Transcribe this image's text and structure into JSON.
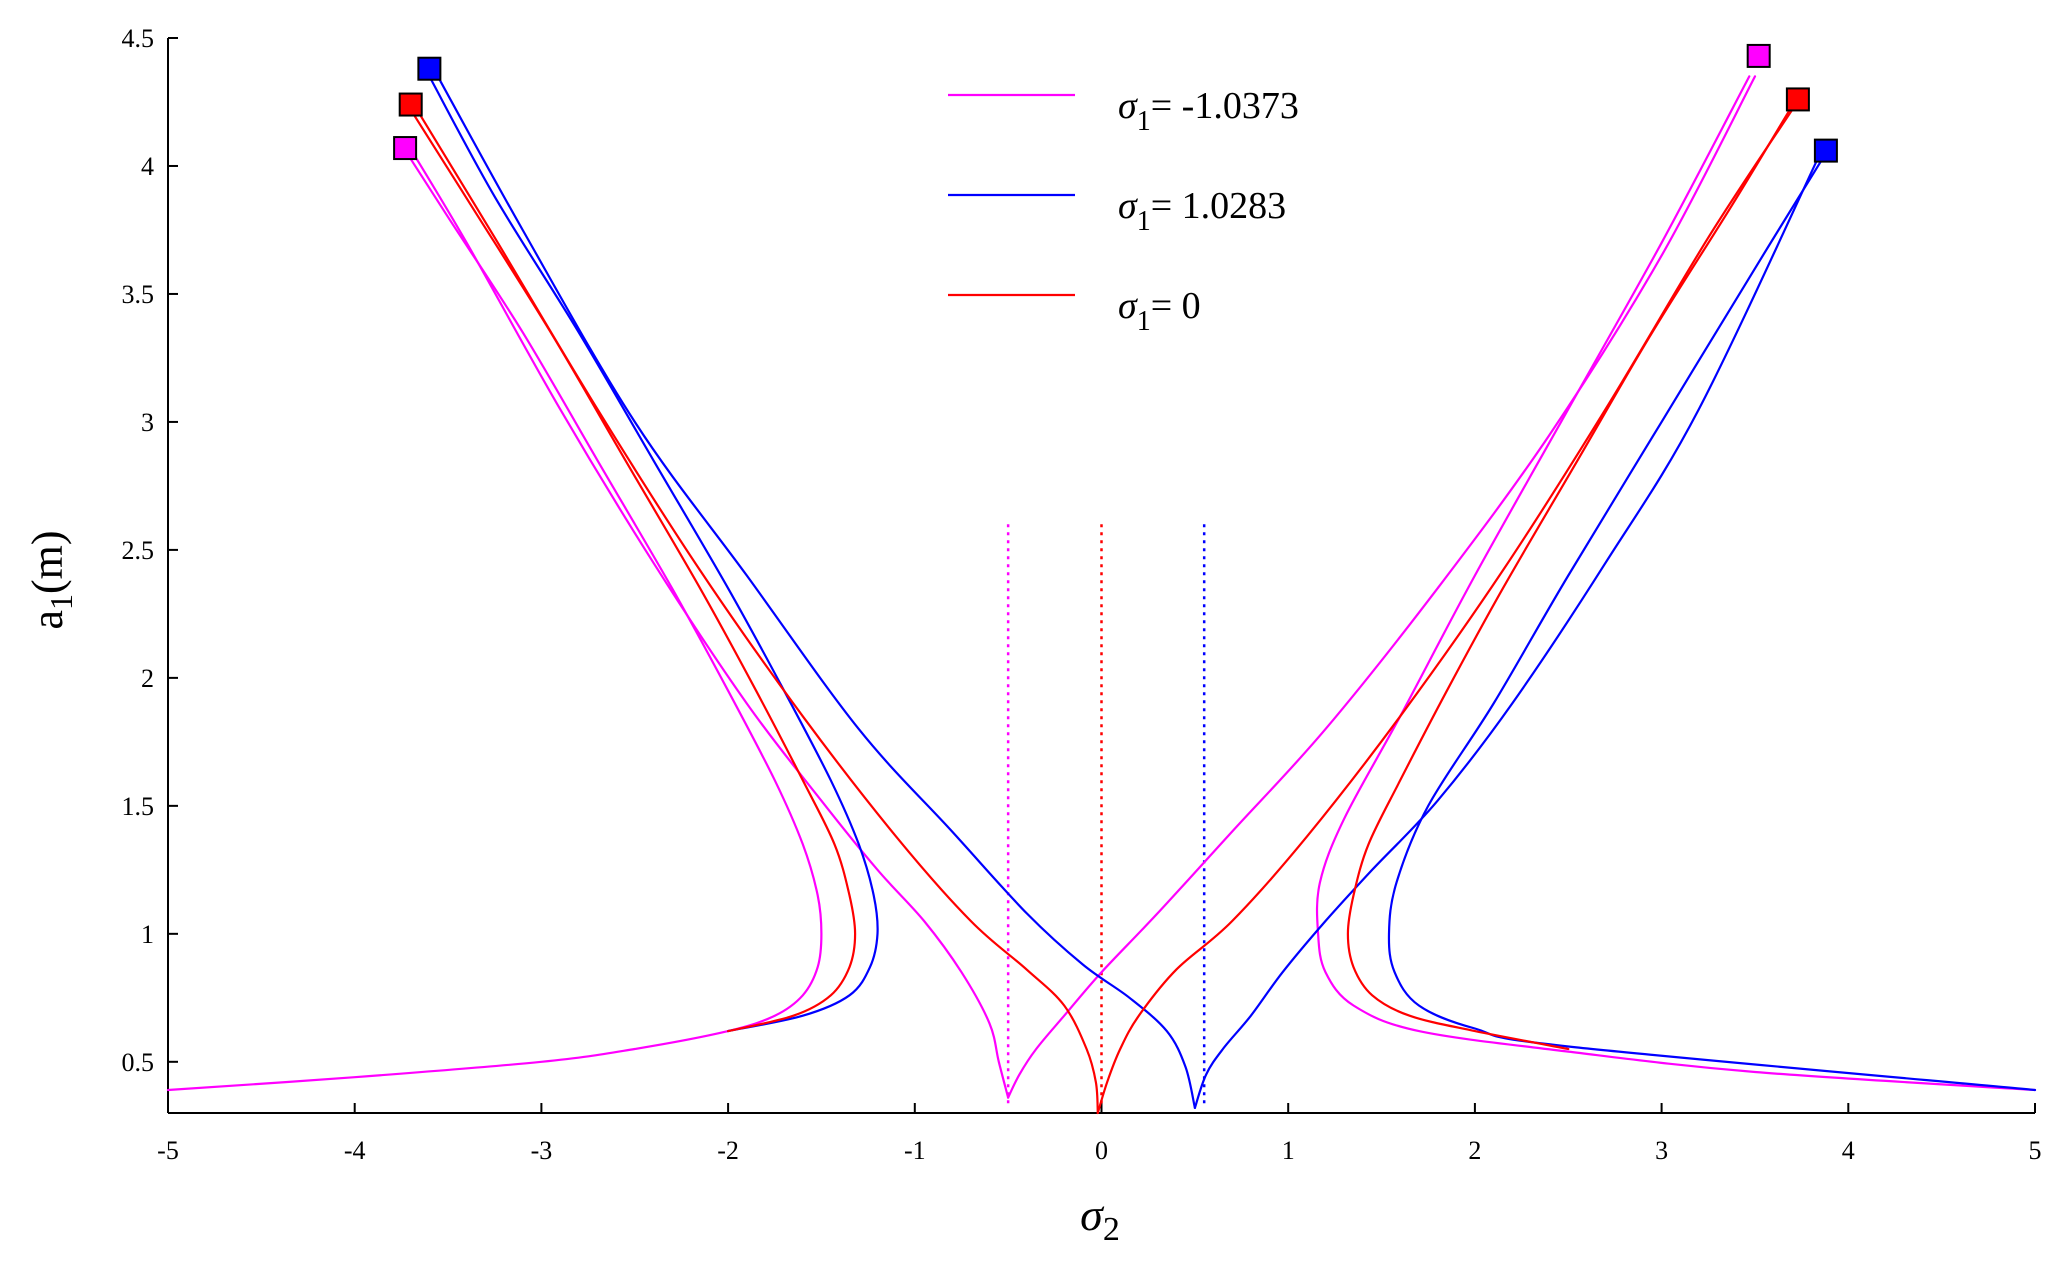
{
  "chart_data": {
    "type": "line",
    "xlabel": {
      "symbol": "σ",
      "sub": "2"
    },
    "ylabel": {
      "main": "a",
      "sub": "1",
      "suffix": "(m)"
    },
    "xlim": [
      -5,
      5
    ],
    "ylim": [
      0.3,
      4.5
    ],
    "xticks": [
      -5,
      -4,
      -3,
      -2,
      -1,
      0,
      1,
      2,
      3,
      4,
      5
    ],
    "yticks": [
      0.5,
      1,
      1.5,
      2,
      2.5,
      3,
      3.5,
      4,
      4.5
    ],
    "xtick_labels": [
      "-5",
      "-4",
      "-3",
      "-2",
      "-1",
      "0",
      "1",
      "2",
      "3",
      "4",
      "5"
    ],
    "ytick_labels": [
      "0.5",
      "1",
      "1.5",
      "2",
      "2.5",
      "3",
      "3.5",
      "4",
      "4.5"
    ],
    "grid": false,
    "legend_position": "top-center",
    "series": [
      {
        "key": "neg",
        "name": "= -1.0373",
        "legend_symbol": "σ",
        "legend_sub": "1",
        "color": "#ff00ff",
        "sigma1": -1.0373,
        "center": -0.52,
        "branches": {
          "outer_left": [
            [
              -5,
              0.39
            ],
            [
              -4,
              0.44
            ],
            [
              -3,
              0.5
            ],
            [
              -2.5,
              0.55
            ],
            [
              -2,
              0.62
            ],
            [
              -1.75,
              0.68
            ],
            [
              -1.6,
              0.76
            ],
            [
              -1.52,
              0.87
            ],
            [
              -1.5,
              1.0
            ],
            [
              -1.52,
              1.15
            ],
            [
              -1.6,
              1.35
            ],
            [
              -1.75,
              1.6
            ],
            [
              -2.0,
              1.95
            ],
            [
              -2.3,
              2.35
            ],
            [
              -2.7,
              2.85
            ],
            [
              -3.1,
              3.35
            ],
            [
              -3.5,
              3.8
            ],
            [
              -3.72,
              4.05
            ]
          ],
          "inner_left": [
            [
              -3.72,
              4.09
            ],
            [
              -3.4,
              3.7
            ],
            [
              -2.9,
              3.05
            ],
            [
              -2.4,
              2.45
            ],
            [
              -1.9,
              1.9
            ],
            [
              -1.5,
              1.52
            ],
            [
              -1.2,
              1.25
            ],
            [
              -0.95,
              1.05
            ],
            [
              -0.75,
              0.85
            ],
            [
              -0.6,
              0.65
            ],
            [
              -0.55,
              0.5
            ],
            [
              -0.5,
              0.36
            ]
          ],
          "inner_right": [
            [
              -0.5,
              0.36
            ],
            [
              -0.44,
              0.45
            ],
            [
              -0.35,
              0.55
            ],
            [
              -0.2,
              0.68
            ],
            [
              0,
              0.85
            ],
            [
              0.3,
              1.08
            ],
            [
              0.7,
              1.4
            ],
            [
              1.2,
              1.8
            ],
            [
              1.8,
              2.35
            ],
            [
              2.4,
              2.95
            ],
            [
              3.0,
              3.65
            ],
            [
              3.5,
              4.35
            ]
          ],
          "outer_right": [
            [
              3.47,
              4.35
            ],
            [
              3.0,
              3.7
            ],
            [
              2.5,
              3.05
            ],
            [
              2.0,
              2.4
            ],
            [
              1.6,
              1.85
            ],
            [
              1.3,
              1.45
            ],
            [
              1.17,
              1.2
            ],
            [
              1.16,
              1.0
            ],
            [
              1.2,
              0.85
            ],
            [
              1.35,
              0.72
            ],
            [
              1.7,
              0.62
            ],
            [
              2.5,
              0.54
            ],
            [
              3.5,
              0.46
            ],
            [
              5,
              0.39
            ]
          ]
        },
        "markers": [
          [
            -3.73,
            4.07
          ],
          [
            3.52,
            4.43
          ]
        ],
        "dotted_line_x": -0.5
      },
      {
        "key": "pos",
        "name": "= 1.0283",
        "legend_symbol": "σ",
        "legend_sub": "1",
        "color": "#0000ff",
        "sigma1": 1.0283,
        "center": 0.52,
        "branches": {
          "outer_left": [
            [
              -2.0,
              0.62
            ],
            [
              -1.6,
              0.68
            ],
            [
              -1.35,
              0.76
            ],
            [
              -1.24,
              0.87
            ],
            [
              -1.2,
              1.0
            ],
            [
              -1.22,
              1.15
            ],
            [
              -1.3,
              1.35
            ],
            [
              -1.45,
              1.6
            ],
            [
              -1.7,
              1.95
            ],
            [
              -2.0,
              2.35
            ],
            [
              -2.4,
              2.85
            ],
            [
              -2.8,
              3.35
            ],
            [
              -3.25,
              3.88
            ],
            [
              -3.6,
              4.35
            ]
          ],
          "inner_left": [
            [
              -3.57,
              4.37
            ],
            [
              -3.1,
              3.75
            ],
            [
              -2.5,
              3.0
            ],
            [
              -1.9,
              2.4
            ],
            [
              -1.3,
              1.8
            ],
            [
              -0.8,
              1.4
            ],
            [
              -0.4,
              1.08
            ],
            [
              -0.1,
              0.88
            ],
            [
              0.15,
              0.75
            ],
            [
              0.35,
              0.62
            ],
            [
              0.45,
              0.48
            ],
            [
              0.5,
              0.32
            ]
          ],
          "inner_right": [
            [
              0.5,
              0.32
            ],
            [
              0.56,
              0.45
            ],
            [
              0.65,
              0.55
            ],
            [
              0.8,
              0.68
            ],
            [
              0.97,
              0.85
            ],
            [
              1.2,
              1.05
            ],
            [
              1.45,
              1.25
            ],
            [
              1.8,
              1.52
            ],
            [
              2.2,
              1.9
            ],
            [
              2.7,
              2.45
            ],
            [
              3.2,
              3.05
            ],
            [
              3.85,
              4.05
            ]
          ],
          "outer_right": [
            [
              3.88,
              4.05
            ],
            [
              3.5,
              3.6
            ],
            [
              3.0,
              3.0
            ],
            [
              2.5,
              2.4
            ],
            [
              2.1,
              1.9
            ],
            [
              1.75,
              1.5
            ],
            [
              1.58,
              1.2
            ],
            [
              1.54,
              1.0
            ],
            [
              1.57,
              0.85
            ],
            [
              1.7,
              0.72
            ],
            [
              2.0,
              0.63
            ],
            [
              2.5,
              0.56
            ],
            [
              5,
              0.39
            ]
          ]
        },
        "markers": [
          [
            -3.6,
            4.38
          ],
          [
            3.88,
            4.06
          ]
        ],
        "dotted_line_x": 0.55
      },
      {
        "key": "zero",
        "name": "= 0",
        "legend_symbol": "σ",
        "legend_sub": "1",
        "color": "#ff0000",
        "sigma1": 0,
        "center": 0,
        "branches": {
          "outer_left": [
            [
              -2.0,
              0.62
            ],
            [
              -1.65,
              0.68
            ],
            [
              -1.45,
              0.76
            ],
            [
              -1.35,
              0.87
            ],
            [
              -1.32,
              1.0
            ],
            [
              -1.35,
              1.15
            ],
            [
              -1.43,
              1.35
            ],
            [
              -1.6,
              1.6
            ],
            [
              -1.85,
              1.95
            ],
            [
              -2.15,
              2.35
            ],
            [
              -2.55,
              2.85
            ],
            [
              -2.95,
              3.35
            ],
            [
              -3.38,
              3.85
            ],
            [
              -3.7,
              4.22
            ]
          ],
          "inner_left": [
            [
              -3.7,
              4.26
            ],
            [
              -3.25,
              3.72
            ],
            [
              -2.7,
              3.05
            ],
            [
              -2.15,
              2.42
            ],
            [
              -1.6,
              1.85
            ],
            [
              -1.1,
              1.38
            ],
            [
              -0.7,
              1.05
            ],
            [
              -0.4,
              0.86
            ],
            [
              -0.2,
              0.72
            ],
            [
              -0.08,
              0.55
            ],
            [
              -0.03,
              0.42
            ],
            [
              -0.02,
              0.3
            ]
          ],
          "inner_right": [
            [
              -0.02,
              0.3
            ],
            [
              0.03,
              0.42
            ],
            [
              0.1,
              0.55
            ],
            [
              0.2,
              0.68
            ],
            [
              0.4,
              0.86
            ],
            [
              0.7,
              1.05
            ],
            [
              1.1,
              1.38
            ],
            [
              1.6,
              1.85
            ],
            [
              2.15,
              2.42
            ],
            [
              2.7,
              3.05
            ],
            [
              3.25,
              3.72
            ],
            [
              3.7,
              4.22
            ]
          ],
          "outer_right": [
            [
              3.72,
              4.26
            ],
            [
              3.38,
              3.85
            ],
            [
              2.95,
              3.35
            ],
            [
              2.55,
              2.85
            ],
            [
              2.15,
              2.35
            ],
            [
              1.85,
              1.95
            ],
            [
              1.6,
              1.6
            ],
            [
              1.43,
              1.35
            ],
            [
              1.35,
              1.15
            ],
            [
              1.32,
              1.0
            ],
            [
              1.35,
              0.87
            ],
            [
              1.45,
              0.76
            ],
            [
              1.65,
              0.68
            ],
            [
              2.0,
              0.62
            ],
            [
              2.5,
              0.55
            ]
          ]
        },
        "markers": [
          [
            -3.7,
            4.24
          ],
          [
            3.73,
            4.26
          ]
        ],
        "dotted_line_x": 0
      }
    ]
  }
}
